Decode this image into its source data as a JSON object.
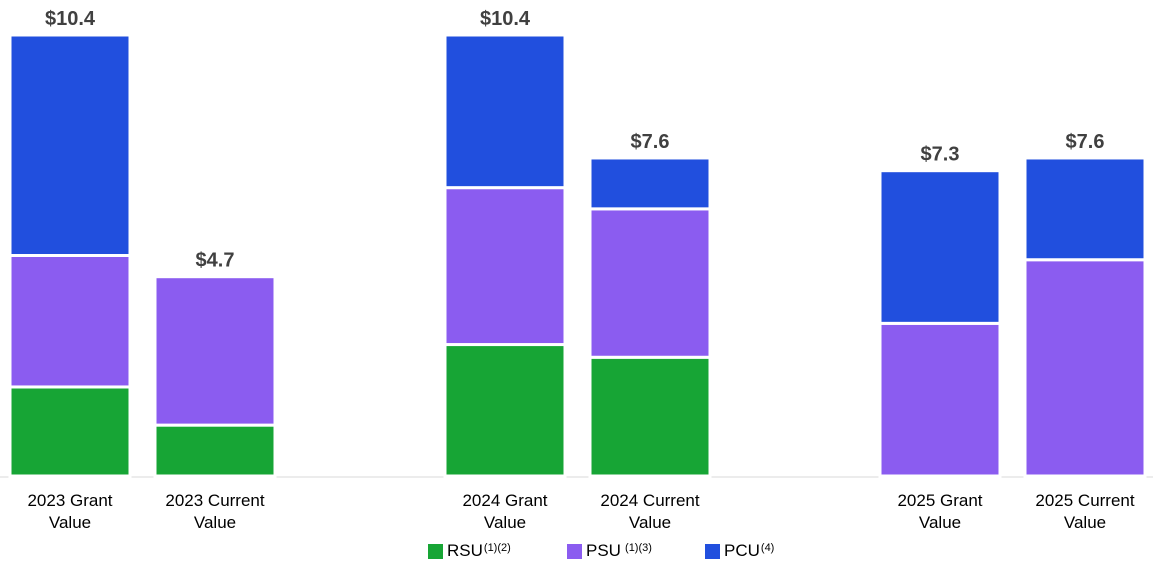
{
  "chart_data": {
    "type": "stacked-bar",
    "categories": [
      [
        "2023 Grant",
        "Value"
      ],
      [
        "2023 Current",
        "Value"
      ],
      [
        "2024 Grant",
        "Value"
      ],
      [
        "2024 Current",
        "Value"
      ],
      [
        "2025 Grant",
        "Value"
      ],
      [
        "2025 Current",
        "Value"
      ]
    ],
    "totals_labels": [
      "$10.4",
      "$4.7",
      "$10.4",
      "$7.6",
      "$7.3",
      "$7.6"
    ],
    "totals": [
      10.4,
      4.7,
      10.4,
      7.6,
      7.3,
      7.6
    ],
    "series": [
      {
        "name": "RSU",
        "superscript": "(1)(2)",
        "color": "#17a535",
        "values": [
          2.1,
          1.2,
          3.1,
          2.8,
          0,
          0
        ]
      },
      {
        "name": "PSU",
        "superscript": " (1)(3)",
        "color": "#8b5cf0",
        "values": [
          3.1,
          3.5,
          3.7,
          3.5,
          3.6,
          5.1
        ]
      },
      {
        "name": "PCU",
        "superscript": "(4)",
        "color": "#214fde",
        "values": [
          5.2,
          0,
          3.6,
          1.2,
          3.6,
          2.4
        ]
      }
    ],
    "ylim": [
      0,
      10.4
    ],
    "grid": false,
    "legend": "bottom"
  }
}
